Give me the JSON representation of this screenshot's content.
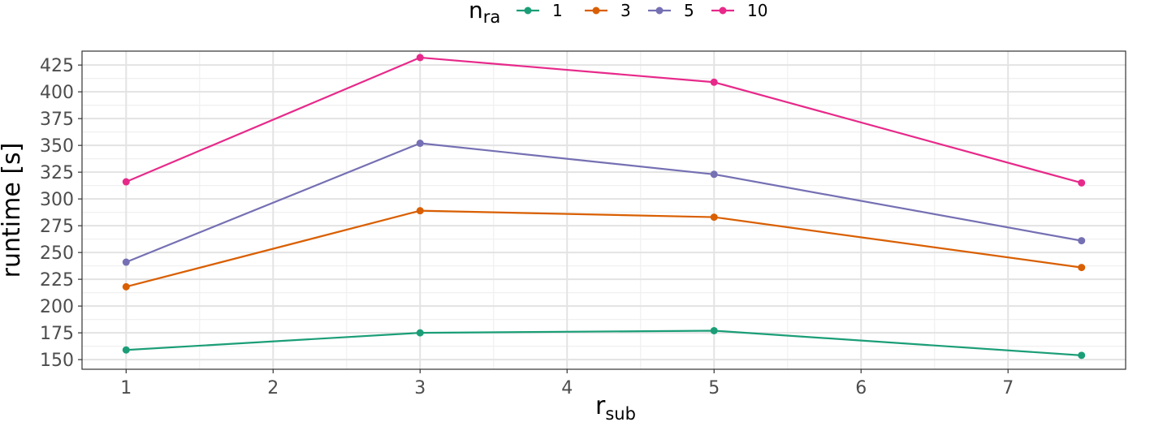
{
  "chart_data": {
    "type": "line",
    "xlabel_main": "r",
    "xlabel_sub": "sub",
    "ylabel": "runtime [s]",
    "legend_title_main": "n",
    "legend_title_sub": "ra",
    "xlim": [
      0.7,
      7.8
    ],
    "ylim": [
      141,
      438
    ],
    "x_ticks": [
      1,
      2,
      3,
      4,
      5,
      6,
      7
    ],
    "x_tick_labels": [
      "1",
      "2",
      "3",
      "4",
      "5",
      "6",
      "7"
    ],
    "y_ticks": [
      150,
      175,
      200,
      225,
      250,
      275,
      300,
      325,
      350,
      375,
      400,
      425
    ],
    "y_tick_labels": [
      "150",
      "175",
      "200",
      "225",
      "250",
      "275",
      "300",
      "325",
      "350",
      "375",
      "400",
      "425"
    ],
    "x": [
      1,
      3,
      5,
      7.5
    ],
    "series": [
      {
        "name": "1",
        "color": "#1b9e77",
        "values": [
          159,
          175,
          177,
          154
        ]
      },
      {
        "name": "3",
        "color": "#d95f02",
        "values": [
          218,
          289,
          283,
          236
        ]
      },
      {
        "name": "5",
        "color": "#7570b3",
        "values": [
          241,
          352,
          323,
          261
        ]
      },
      {
        "name": "10",
        "color": "#e7298a",
        "values": [
          316,
          432,
          409,
          315
        ]
      }
    ]
  }
}
